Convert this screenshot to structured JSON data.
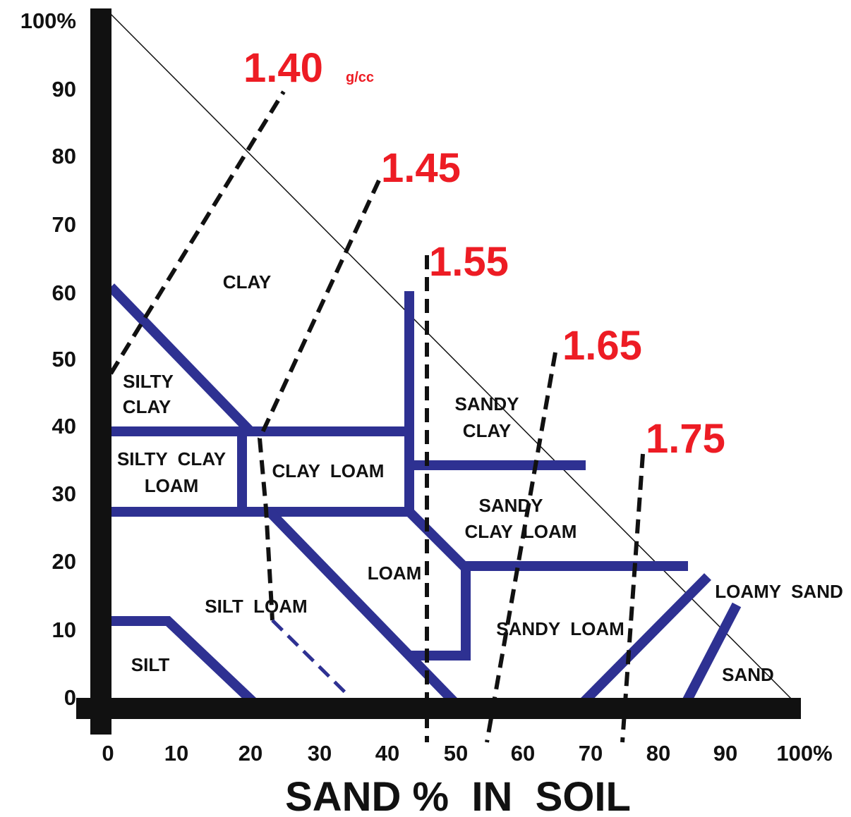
{
  "colors": {
    "axis": "#111111",
    "boundary": "#2e3192",
    "density_line": "#111111",
    "density_label": "#ed1c24"
  },
  "x_axis": {
    "title": "SAND %  IN  SOIL",
    "ticks": [
      "0",
      "10",
      "20",
      "30",
      "40",
      "50",
      "60",
      "70",
      "80",
      "90",
      "100%"
    ]
  },
  "y_axis": {
    "ticks": [
      "0",
      "10",
      "20",
      "30",
      "40",
      "50",
      "60",
      "70",
      "80",
      "90",
      "100%"
    ]
  },
  "regions": {
    "clay": "CLAY",
    "silty_clay": [
      "SILTY",
      "CLAY"
    ],
    "silty_clay_loam": [
      "SILTY  CLAY",
      "LOAM"
    ],
    "clay_loam": "CLAY  LOAM",
    "sandy_clay": [
      "SANDY",
      "CLAY"
    ],
    "sandy_clay_loam": [
      "SANDY",
      "CLAY  LOAM"
    ],
    "loam": "LOAM",
    "silt_loam": "SILT  LOAM",
    "sandy_loam": "SANDY  LOAM",
    "silt": "SILT",
    "loamy_sand": "LOAMY  SAND",
    "sand": "SAND"
  },
  "density_lines": [
    {
      "value": "1.40",
      "unit": "g/cc"
    },
    {
      "value": "1.45"
    },
    {
      "value": "1.55"
    },
    {
      "value": "1.65"
    },
    {
      "value": "1.75"
    }
  ]
}
